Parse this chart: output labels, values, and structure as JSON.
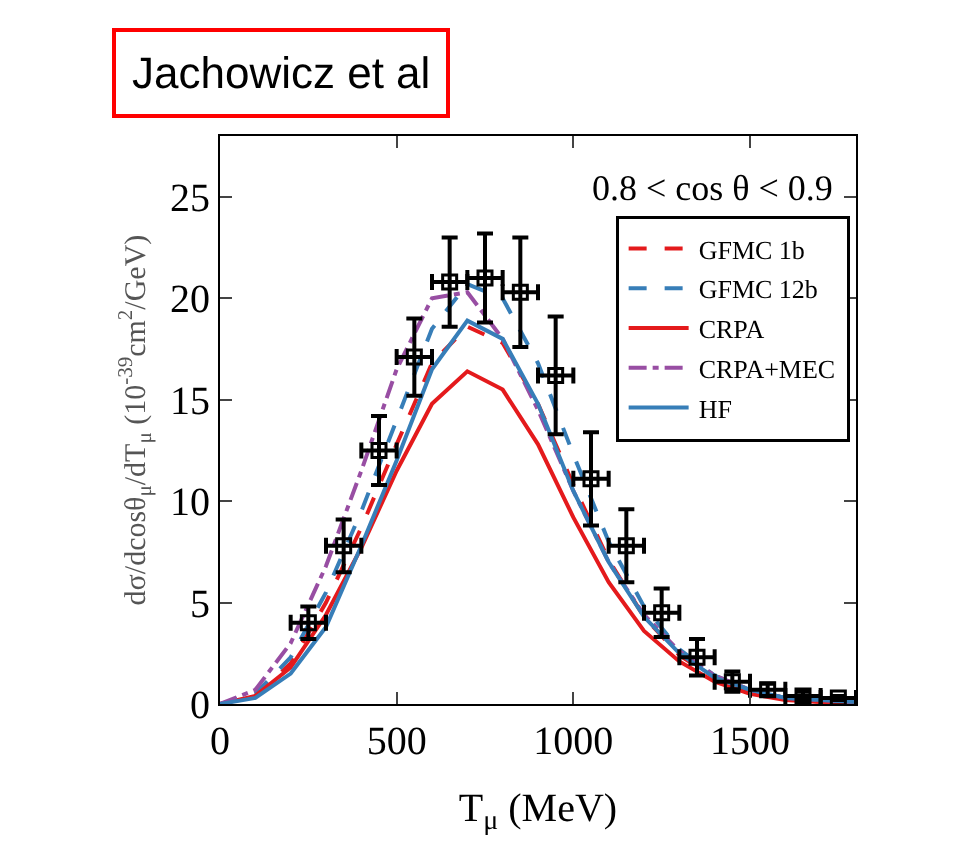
{
  "chart_data": {
    "type": "line",
    "title": "Jachowicz et al",
    "xlabel": "T$_{μ}$ (MeV)",
    "ylabel": "dσ/dcosθ$_{μ}$/dT$_{μ}$ (10$^{-39}$cm$^{2}$/GeV)",
    "annotations": [
      "0.8 < cos θ < 0.9"
    ],
    "x": [
      0,
      100,
      200,
      300,
      400,
      500,
      600,
      700,
      800,
      900,
      1000,
      1100,
      1200,
      1300,
      1400,
      1500,
      1600,
      1700,
      1800
    ],
    "series": [
      {
        "name": "GFMC 1b",
        "color": "#e41a1c",
        "line_style": "dashed",
        "values": [
          0,
          0.4,
          2.0,
          5.0,
          8.7,
          12.8,
          16.8,
          18.6,
          17.8,
          14.8,
          10.8,
          7.1,
          4.3,
          2.4,
          1.3,
          0.6,
          0.3,
          0.1,
          0.0
        ]
      },
      {
        "name": "GFMC 12b",
        "color": "#377eb8",
        "line_style": "dashed",
        "values": [
          0,
          0.5,
          2.3,
          5.5,
          9.5,
          14.0,
          18.5,
          20.7,
          20.0,
          16.8,
          12.3,
          8.0,
          4.8,
          2.7,
          1.4,
          0.7,
          0.3,
          0.2,
          0.1
        ]
      },
      {
        "name": "CRPA",
        "color": "#e41a1c",
        "line_style": "solid",
        "values": [
          0,
          0.4,
          1.8,
          4.4,
          7.7,
          11.5,
          14.8,
          16.4,
          15.5,
          12.8,
          9.2,
          6.0,
          3.6,
          2.1,
          1.1,
          0.5,
          0.2,
          0.1,
          0.0
        ]
      },
      {
        "name": "CRPA+MEC",
        "color": "#984ea3",
        "line_style": "dashdot",
        "values": [
          0,
          0.7,
          3.0,
          6.8,
          11.5,
          16.5,
          20.0,
          20.3,
          18.0,
          14.5,
          10.5,
          7.0,
          4.4,
          2.6,
          1.4,
          0.7,
          0.3,
          0.2,
          0.1
        ]
      },
      {
        "name": "HF",
        "color": "#377eb8",
        "line_style": "solid",
        "values": [
          0,
          0.3,
          1.5,
          3.8,
          7.8,
          12.0,
          16.5,
          18.9,
          18.0,
          14.8,
          10.5,
          7.0,
          4.3,
          2.5,
          1.3,
          0.7,
          0.3,
          0.2,
          0.1
        ]
      },
      {
        "type": "scatter",
        "color": "#000000",
        "marker": "square",
        "x": [
          250,
          350,
          450,
          550,
          650,
          750,
          850,
          950,
          1050,
          1150,
          1250,
          1350,
          1450,
          1550,
          1650,
          1750
        ],
        "values": [
          4.0,
          7.8,
          12.5,
          17.1,
          20.8,
          21.0,
          20.3,
          16.2,
          11.1,
          7.8,
          4.5,
          2.3,
          1.1,
          0.7,
          0.4,
          0.3
        ],
        "errors": [
          0.8,
          1.3,
          1.7,
          1.9,
          2.2,
          2.2,
          2.7,
          2.9,
          2.3,
          1.8,
          1.2,
          0.9,
          0.5,
          0.3,
          0.2,
          0.1
        ],
        "xerrors": [
          50,
          50,
          50,
          50,
          50,
          50,
          50,
          50,
          50,
          50,
          50,
          50,
          50,
          50,
          50,
          50
        ]
      }
    ],
    "xlim": [
      0,
      1800
    ],
    "xticks": [
      0,
      500,
      1000,
      1500
    ],
    "ylim": [
      0,
      28
    ],
    "yticks": [
      0,
      5,
      10,
      15,
      20,
      25
    ],
    "legend": "top right"
  }
}
